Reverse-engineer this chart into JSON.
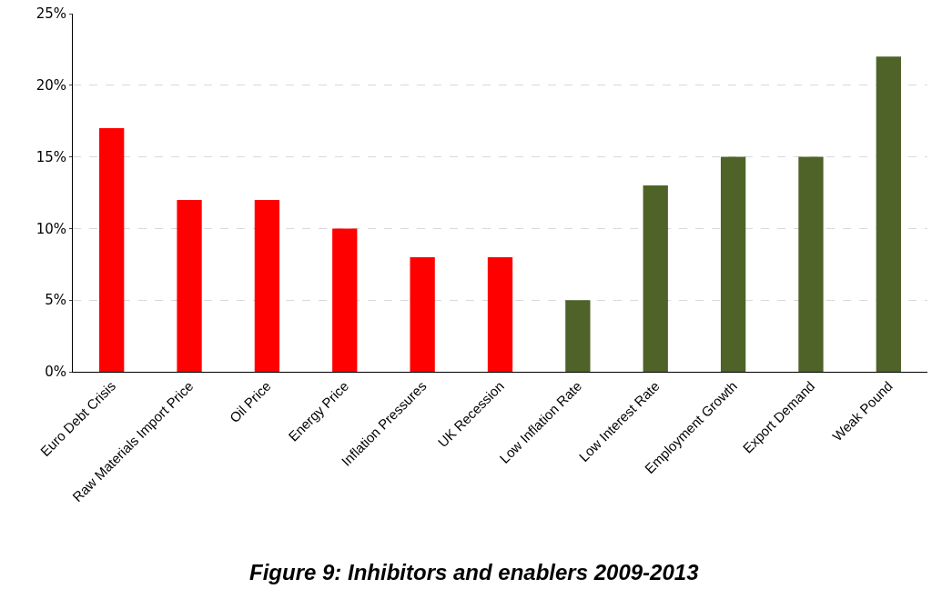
{
  "chart_data": {
    "type": "bar",
    "title": "Figure 9: Inhibitors and enablers 2009-2013",
    "categories": [
      "Euro Debt Crisis",
      "Raw Materials Import Price",
      "Oil Price",
      "Energy Price",
      "Inflation Pressures",
      "UK Recession",
      "Low Inflation Rate",
      "Low Interest Rate",
      "Employment Growth",
      "Export Demand",
      "Weak Pound"
    ],
    "values": [
      17,
      12,
      12,
      10,
      8,
      8,
      5,
      13,
      15,
      15,
      22
    ],
    "colors": [
      "#ff0000",
      "#ff0000",
      "#ff0000",
      "#ff0000",
      "#ff0000",
      "#ff0000",
      "#4f6228",
      "#4f6228",
      "#4f6228",
      "#4f6228",
      "#4f6228"
    ],
    "ylim": [
      0,
      25
    ],
    "yticks": [
      {
        "value": 0,
        "label": "0%"
      },
      {
        "value": 5,
        "label": "5%"
      },
      {
        "value": 10,
        "label": "10%"
      },
      {
        "value": 15,
        "label": "15%"
      },
      {
        "value": 20,
        "label": "20%"
      },
      {
        "value": 25,
        "label": "25%"
      }
    ],
    "grid": "y"
  }
}
